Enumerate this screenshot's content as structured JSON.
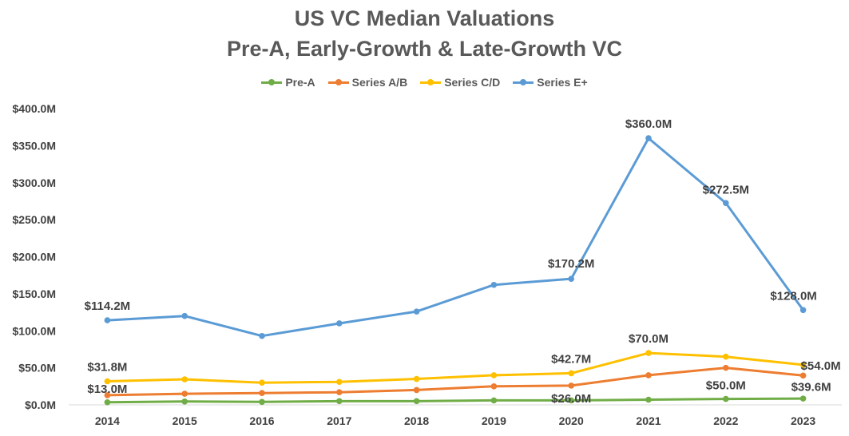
{
  "chart_data": {
    "type": "line",
    "title": "US VC Median Valuations",
    "subtitle": "Pre-A, Early-Growth & Late-Growth VC",
    "xlabel": "",
    "ylabel": "",
    "categories": [
      "2014",
      "2015",
      "2016",
      "2017",
      "2018",
      "2019",
      "2020",
      "2021",
      "2022",
      "2023"
    ],
    "y_ticks": [
      "$0.0M",
      "$50.0M",
      "$100.0M",
      "$150.0M",
      "$200.0M",
      "$250.0M",
      "$300.0M",
      "$350.0M",
      "$400.0M"
    ],
    "ylim": [
      0,
      400
    ],
    "grid": false,
    "legend_position": "top",
    "series": [
      {
        "name": "Pre-A",
        "color": "#70AD47",
        "values": [
          3.5,
          4.5,
          4,
          5,
          5,
          6,
          6,
          7,
          8,
          8.5
        ]
      },
      {
        "name": "Series A/B",
        "color": "#ED7D31",
        "values": [
          13,
          15,
          16,
          17,
          20,
          25,
          26,
          40,
          50,
          39.6
        ]
      },
      {
        "name": "Series C/D",
        "color": "#FFC000",
        "values": [
          31.8,
          34.5,
          30,
          31,
          35,
          40,
          42.7,
          70,
          65,
          54
        ]
      },
      {
        "name": "Series E+",
        "color": "#5B9BD5",
        "values": [
          114.2,
          120,
          93,
          110,
          126,
          162,
          170.2,
          360,
          272.5,
          128
        ]
      }
    ],
    "data_labels": [
      {
        "series": "Series E+",
        "category": "2014",
        "text": "$114.2M"
      },
      {
        "series": "Series E+",
        "category": "2020",
        "text": "$170.2M"
      },
      {
        "series": "Series E+",
        "category": "2021",
        "text": "$360.0M"
      },
      {
        "series": "Series E+",
        "category": "2022",
        "text": "$272.5M"
      },
      {
        "series": "Series E+",
        "category": "2023",
        "text": "$128.0M"
      },
      {
        "series": "Series C/D",
        "category": "2014",
        "text": "$31.8M"
      },
      {
        "series": "Series C/D",
        "category": "2020",
        "text": "$42.7M"
      },
      {
        "series": "Series C/D",
        "category": "2021",
        "text": "$70.0M"
      },
      {
        "series": "Series C/D",
        "category": "2023",
        "text": "$54.0M"
      },
      {
        "series": "Series A/B",
        "category": "2014",
        "text": "$13.0M"
      },
      {
        "series": "Series A/B",
        "category": "2020",
        "text": "$26.0M"
      },
      {
        "series": "Series A/B",
        "category": "2022",
        "text": "$50.0M"
      },
      {
        "series": "Series A/B",
        "category": "2023",
        "text": "$39.6M"
      }
    ]
  }
}
